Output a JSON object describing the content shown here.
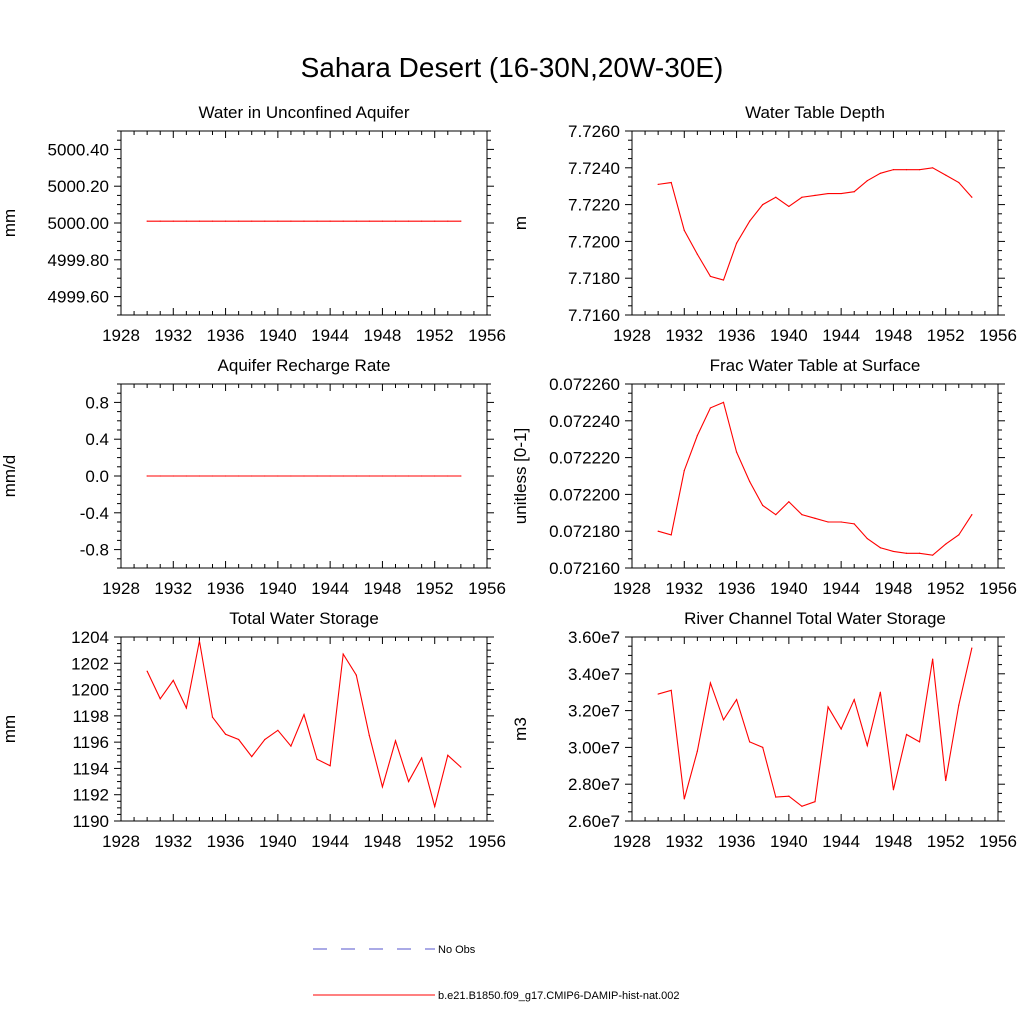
{
  "figure": {
    "title": "Sahara Desert (16-30N,20W-30E)"
  },
  "legend": {
    "entries": [
      {
        "label": "No Obs",
        "color": "#5555cc",
        "style": "dashed"
      },
      {
        "label": "b.e21.B1850.f09_g17.CMIP6-DAMIP-hist-nat.002",
        "color": "#ff0000",
        "style": "solid"
      }
    ]
  },
  "chart_data": [
    {
      "type": "line",
      "title": "Water in Unconfined Aquifer",
      "ylabel": "mm",
      "xlim": [
        1928,
        1956
      ],
      "ylim": [
        4999.5,
        5000.5
      ],
      "xticks": [
        1928,
        1932,
        1936,
        1940,
        1944,
        1948,
        1952,
        1956
      ],
      "yticks": [
        4999.6,
        4999.8,
        5000.0,
        5000.2,
        5000.4
      ],
      "yticklabels": [
        "4999.60",
        "4999.80",
        "5000.00",
        "5000.20",
        "5000.40"
      ],
      "series": [
        {
          "color": "#ff0000",
          "x": [
            1930,
            1931,
            1932,
            1933,
            1934,
            1935,
            1936,
            1937,
            1938,
            1939,
            1940,
            1941,
            1942,
            1943,
            1944,
            1945,
            1946,
            1947,
            1948,
            1949,
            1950,
            1951,
            1952,
            1953,
            1954
          ],
          "y": [
            5000.01,
            5000.01,
            5000.01,
            5000.01,
            5000.01,
            5000.01,
            5000.01,
            5000.01,
            5000.01,
            5000.01,
            5000.01,
            5000.01,
            5000.01,
            5000.01,
            5000.01,
            5000.01,
            5000.01,
            5000.01,
            5000.01,
            5000.01,
            5000.01,
            5000.01,
            5000.01,
            5000.01,
            5000.01
          ]
        }
      ]
    },
    {
      "type": "line",
      "title": "Water Table Depth",
      "ylabel": "m",
      "xlim": [
        1928,
        1956
      ],
      "ylim": [
        7.716,
        7.726
      ],
      "xticks": [
        1928,
        1932,
        1936,
        1940,
        1944,
        1948,
        1952,
        1956
      ],
      "yticks": [
        7.716,
        7.718,
        7.72,
        7.722,
        7.724,
        7.726
      ],
      "yticklabels": [
        "7.7160",
        "7.7180",
        "7.7200",
        "7.7220",
        "7.7240",
        "7.7260"
      ],
      "series": [
        {
          "color": "#ff0000",
          "x": [
            1930,
            1931,
            1932,
            1933,
            1934,
            1935,
            1936,
            1937,
            1938,
            1939,
            1940,
            1941,
            1942,
            1943,
            1944,
            1945,
            1946,
            1947,
            1948,
            1949,
            1950,
            1951,
            1952,
            1953,
            1954
          ],
          "y": [
            7.7231,
            7.7232,
            7.7206,
            7.7193,
            7.7181,
            7.7179,
            7.7199,
            7.7211,
            7.722,
            7.7224,
            7.7219,
            7.7224,
            7.7225,
            7.7226,
            7.7226,
            7.7227,
            7.7233,
            7.7237,
            7.7239,
            7.7239,
            7.7239,
            7.724,
            7.7236,
            7.7232,
            7.7224
          ]
        }
      ]
    },
    {
      "type": "line",
      "title": "Aquifer Recharge Rate",
      "ylabel": "mm/d",
      "xlim": [
        1928,
        1956
      ],
      "ylim": [
        -1.0,
        1.0
      ],
      "xticks": [
        1928,
        1932,
        1936,
        1940,
        1944,
        1948,
        1952,
        1956
      ],
      "yticks": [
        -0.8,
        -0.4,
        0.0,
        0.4,
        0.8
      ],
      "yticklabels": [
        "-0.8",
        "-0.4",
        "0.0",
        "0.4",
        "0.8"
      ],
      "series": [
        {
          "color": "#ff0000",
          "x": [
            1930,
            1931,
            1932,
            1933,
            1934,
            1935,
            1936,
            1937,
            1938,
            1939,
            1940,
            1941,
            1942,
            1943,
            1944,
            1945,
            1946,
            1947,
            1948,
            1949,
            1950,
            1951,
            1952,
            1953,
            1954
          ],
          "y": [
            0,
            0,
            0,
            0,
            0,
            0,
            0,
            0,
            0,
            0,
            0,
            0,
            0,
            0,
            0,
            0,
            0,
            0,
            0,
            0,
            0,
            0,
            0,
            0,
            0
          ]
        }
      ]
    },
    {
      "type": "line",
      "title": "Frac Water Table at Surface",
      "ylabel": "unitless [0-1]",
      "xlim": [
        1928,
        1956
      ],
      "ylim": [
        0.07216,
        0.07226
      ],
      "xticks": [
        1928,
        1932,
        1936,
        1940,
        1944,
        1948,
        1952,
        1956
      ],
      "yticks": [
        0.07216,
        0.07218,
        0.0722,
        0.07222,
        0.07224,
        0.07226
      ],
      "yticklabels": [
        "0.072160",
        "0.072180",
        "0.072200",
        "0.072220",
        "0.072240",
        "0.072260"
      ],
      "series": [
        {
          "color": "#ff0000",
          "x": [
            1930,
            1931,
            1932,
            1933,
            1934,
            1935,
            1936,
            1937,
            1938,
            1939,
            1940,
            1941,
            1942,
            1943,
            1944,
            1945,
            1946,
            1947,
            1948,
            1949,
            1950,
            1951,
            1952,
            1953,
            1954
          ],
          "y": [
            0.07218,
            0.072178,
            0.072213,
            0.072232,
            0.072247,
            0.07225,
            0.072223,
            0.072207,
            0.072194,
            0.072189,
            0.072196,
            0.072189,
            0.072187,
            0.072185,
            0.072185,
            0.072184,
            0.072176,
            0.072171,
            0.072169,
            0.072168,
            0.072168,
            0.072167,
            0.072173,
            0.072178,
            0.072189
          ]
        }
      ]
    },
    {
      "type": "line",
      "title": "Total Water Storage",
      "ylabel": "mm",
      "xlim": [
        1928,
        1956
      ],
      "ylim": [
        1190,
        1204
      ],
      "xticks": [
        1928,
        1932,
        1936,
        1940,
        1944,
        1948,
        1952,
        1956
      ],
      "yticks": [
        1190,
        1192,
        1194,
        1196,
        1198,
        1200,
        1202,
        1204
      ],
      "yticklabels": [
        "1190",
        "1192",
        "1194",
        "1196",
        "1198",
        "1200",
        "1202",
        "1204"
      ],
      "series": [
        {
          "color": "#ff0000",
          "x": [
            1930,
            1931,
            1932,
            1933,
            1934,
            1935,
            1936,
            1937,
            1938,
            1939,
            1940,
            1941,
            1942,
            1943,
            1944,
            1945,
            1946,
            1947,
            1948,
            1949,
            1950,
            1951,
            1952,
            1953,
            1954
          ],
          "y": [
            1201.4,
            1199.3,
            1200.7,
            1198.6,
            1203.7,
            1197.9,
            1196.6,
            1196.2,
            1194.9,
            1196.2,
            1196.9,
            1195.7,
            1198.1,
            1194.7,
            1194.2,
            1202.7,
            1201.1,
            1196.5,
            1192.6,
            1196.1,
            1193.0,
            1194.8,
            1191.1,
            1195.0,
            1194.1
          ]
        }
      ]
    },
    {
      "type": "line",
      "title": "River Channel Total Water Storage",
      "ylabel": "m3",
      "xlim": [
        1928,
        1956
      ],
      "ylim": [
        26000000,
        36000000
      ],
      "xticks": [
        1928,
        1932,
        1936,
        1940,
        1944,
        1948,
        1952,
        1956
      ],
      "yticks": [
        26000000,
        28000000,
        30000000,
        32000000,
        34000000,
        36000000
      ],
      "yticklabels": [
        "2.60e7",
        "2.80e7",
        "3.00e7",
        "3.20e7",
        "3.40e7",
        "3.60e7"
      ],
      "series": [
        {
          "color": "#ff0000",
          "x": [
            1930,
            1931,
            1932,
            1933,
            1934,
            1935,
            1936,
            1937,
            1938,
            1939,
            1940,
            1941,
            1942,
            1943,
            1944,
            1945,
            1946,
            1947,
            1948,
            1949,
            1950,
            1951,
            1952,
            1953,
            1954
          ],
          "y": [
            32900000,
            33100000,
            27200000,
            29800000,
            33500000,
            31500000,
            32600000,
            30300000,
            30000000,
            27300000,
            27350000,
            26800000,
            27050000,
            32200000,
            31000000,
            32600000,
            30100000,
            33000000,
            27700000,
            30700000,
            30300000,
            34800000,
            28200000,
            32300000,
            35400000
          ]
        }
      ]
    }
  ]
}
